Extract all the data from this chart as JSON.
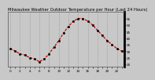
{
  "title": "Milwaukee Weather Outdoor Temperature per Hour (Last 24 Hours)",
  "hours": [
    0,
    1,
    2,
    3,
    4,
    5,
    6,
    7,
    8,
    9,
    10,
    11,
    12,
    13,
    14,
    15,
    16,
    17,
    18,
    19,
    20,
    21,
    22,
    23
  ],
  "temps": [
    32,
    30,
    28,
    27,
    25,
    24,
    22,
    24,
    28,
    33,
    38,
    44,
    49,
    53,
    55,
    55,
    53,
    50,
    46,
    42,
    38,
    35,
    32,
    30
  ],
  "line_color": "#cc0000",
  "marker_color": "#000000",
  "bg_color": "#c8c8c8",
  "plot_bg_color": "#c8c8c8",
  "grid_color": "#888888",
  "border_color": "#000000",
  "ylim": [
    18,
    60
  ],
  "ytick_values": [
    20,
    25,
    30,
    35,
    40,
    45,
    50,
    55
  ],
  "ytick_labels": [
    "20",
    "25",
    "30",
    "35",
    "40",
    "45",
    "50",
    "55"
  ],
  "title_fontsize": 3.8,
  "tick_fontsize": 3.0,
  "line_width": 0.9,
  "marker_size": 1.8
}
